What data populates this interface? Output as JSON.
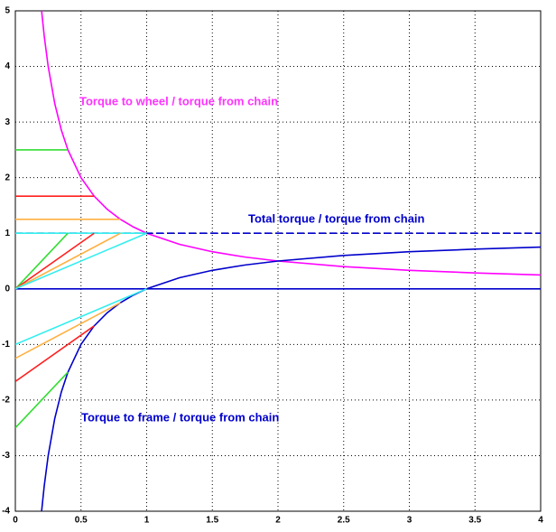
{
  "chart_data": {
    "type": "line",
    "xlim": [
      0,
      4
    ],
    "ylim": [
      -4,
      5
    ],
    "xticks": [
      0,
      0.5,
      1,
      1.5,
      2,
      2.5,
      3,
      3.5,
      4
    ],
    "yticks": [
      -4,
      -3,
      -2,
      -1,
      0,
      1,
      2,
      3,
      4,
      5
    ],
    "grid": true,
    "annotations": [
      {
        "text": "Torque to wheel / torque from chain",
        "color": "#ff33ff"
      },
      {
        "text": "Total torque / torque from chain",
        "color": "#0000cc"
      },
      {
        "text": "Torque to frame / torque from chain",
        "color": "#0000cc"
      }
    ],
    "series": [
      {
        "color": "#ff00ff",
        "x": [
          0.2,
          0.22,
          0.25,
          0.3,
          0.35,
          0.4,
          0.5,
          0.6,
          0.7,
          0.8,
          0.9,
          1,
          1.25,
          1.5,
          1.75,
          2,
          2.5,
          3,
          3.5,
          4
        ],
        "values": [
          5,
          4.545,
          4,
          3.333,
          2.857,
          2.5,
          2,
          1.667,
          1.429,
          1.25,
          1.111,
          1,
          0.8,
          0.667,
          0.571,
          0.5,
          0.4,
          0.333,
          0.286,
          0.25
        ]
      },
      {
        "color": "#0000cc",
        "x": [
          0.2,
          0.22,
          0.25,
          0.3,
          0.35,
          0.4,
          0.5,
          0.6,
          0.7,
          0.8,
          0.9,
          1,
          1.25,
          1.5,
          1.75,
          2,
          2.5,
          3,
          3.5,
          4
        ],
        "values": [
          -4,
          -3.545,
          -3,
          -2.333,
          -1.857,
          -1.5,
          -1,
          -0.667,
          -0.429,
          -0.25,
          -0.111,
          0,
          0.2,
          0.333,
          0.429,
          0.5,
          0.6,
          0.667,
          0.714,
          0.75
        ]
      },
      {
        "color": "#0000cc",
        "dashed": true,
        "x": [
          0,
          4
        ],
        "values": [
          1,
          1
        ]
      },
      {
        "color": "#0000cc",
        "x": [
          0,
          4
        ],
        "values": [
          0,
          0
        ]
      },
      {
        "color": "#33dd33",
        "x": [
          0,
          0.4
        ],
        "values": [
          2.5,
          2.5
        ]
      },
      {
        "color": "#ff2020",
        "x": [
          0,
          0.6
        ],
        "values": [
          1.667,
          1.667
        ]
      },
      {
        "color": "#ffb040",
        "x": [
          0,
          0.8
        ],
        "values": [
          1.25,
          1.25
        ]
      },
      {
        "color": "#33eeee",
        "x": [
          0,
          1
        ],
        "values": [
          1,
          1
        ]
      },
      {
        "color": "#33dd33",
        "x": [
          0,
          0.4
        ],
        "values": [
          0,
          1
        ]
      },
      {
        "color": "#ff2020",
        "x": [
          0,
          0.6
        ],
        "values": [
          0,
          1
        ]
      },
      {
        "color": "#ffb040",
        "x": [
          0,
          0.8
        ],
        "values": [
          0,
          1
        ]
      },
      {
        "color": "#33eeee",
        "x": [
          0,
          1
        ],
        "values": [
          0,
          1
        ]
      },
      {
        "color": "#33dd33",
        "x": [
          0,
          0.4
        ],
        "values": [
          -2.5,
          -1.5
        ]
      },
      {
        "color": "#ff2020",
        "x": [
          0,
          0.6
        ],
        "values": [
          -1.667,
          -0.667
        ]
      },
      {
        "color": "#ffb040",
        "x": [
          0,
          0.8
        ],
        "values": [
          -1.25,
          -0.25
        ]
      },
      {
        "color": "#33eeee",
        "x": [
          0,
          1
        ],
        "values": [
          -1,
          0
        ]
      }
    ]
  }
}
